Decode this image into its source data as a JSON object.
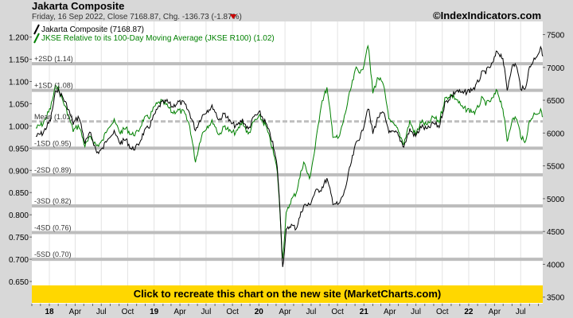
{
  "header": {
    "title": "Jakarta Composite",
    "subtitle_prefix": "Friday, 16 Sep 2022, Close 7168.87, Chg. -136.73 (-1.87%)",
    "change_arrow": "down-triangle-icon",
    "watermark": "©IndexIndicators.com"
  },
  "banner": {
    "label": "Click to recreate this chart on the new site (MarketCharts.com)"
  },
  "colors": {
    "price": "#000000",
    "ratio": "#008000",
    "banner": "#ffd700",
    "band_line": "#bdbdbd",
    "mean_line": "#bfbfbf",
    "arrow": "#cc0000"
  },
  "chart_data": {
    "type": "line",
    "legend": [
      "Jakarta Composite (7168.87)",
      "JKSE Relative to its 100-Day Moving Average (JKSE R100) (1.02)"
    ],
    "legend_placement": "top-left",
    "x_tick_labels": [
      "18",
      "Apr",
      "Jul",
      "Oct",
      "19",
      "Apr",
      "Jul",
      "Oct",
      "20",
      "Apr",
      "Jul",
      "Oct",
      "21",
      "Apr",
      "Jul",
      "Oct",
      "22",
      "Apr",
      "Jul"
    ],
    "x_tick_dates": [
      "2018-01",
      "2018-04",
      "2018-07",
      "2018-10",
      "2019-01",
      "2019-04",
      "2019-07",
      "2019-10",
      "2020-01",
      "2020-04",
      "2020-07",
      "2020-10",
      "2021-01",
      "2021-04",
      "2021-07",
      "2021-10",
      "2022-01",
      "2022-04",
      "2022-07"
    ],
    "x_range": [
      "2017-11",
      "2022-09-16"
    ],
    "left_axis": {
      "ticks": [
        "1.200",
        "1.150",
        "1.100",
        "1.050",
        "1.000",
        "0.950",
        "0.900",
        "0.850",
        "0.800",
        "0.750",
        "0.700",
        "0.650"
      ],
      "range": [
        0.6,
        1.235
      ]
    },
    "right_axis": {
      "ticks": [
        "7500",
        "7000",
        "6500",
        "6000",
        "5500",
        "5000",
        "4500",
        "4000",
        "3500"
      ],
      "range": [
        3400,
        7700
      ]
    },
    "sd_bands": [
      {
        "label": "+2SD (1.14)",
        "value": 1.14
      },
      {
        "label": "+1SD (1.08)",
        "value": 1.08
      },
      {
        "label": "Mean (1.01)",
        "value": 1.01
      },
      {
        "label": "-1SD (0.95)",
        "value": 0.95
      },
      {
        "label": "-2SD (0.89)",
        "value": 0.89
      },
      {
        "label": "-3SD (0.82)",
        "value": 0.82
      },
      {
        "label": "-4SD (0.76)",
        "value": 0.76
      },
      {
        "label": "-5SD (0.70)",
        "value": 0.7
      }
    ],
    "series": [
      {
        "name": "Jakarta Composite (7168.87)",
        "axis": "right",
        "points": [
          [
            "2017-11-15",
            5950
          ],
          [
            "2017-12-10",
            6000
          ],
          [
            "2018-01-05",
            6200
          ],
          [
            "2018-01-25",
            6680
          ],
          [
            "2018-02-15",
            6560
          ],
          [
            "2018-03-05",
            6400
          ],
          [
            "2018-03-25",
            6150
          ],
          [
            "2018-04-15",
            6250
          ],
          [
            "2018-05-05",
            5850
          ],
          [
            "2018-05-25",
            6000
          ],
          [
            "2018-06-15",
            5700
          ],
          [
            "2018-07-05",
            5750
          ],
          [
            "2018-07-25",
            5950
          ],
          [
            "2018-08-15",
            6000
          ],
          [
            "2018-09-05",
            5850
          ],
          [
            "2018-09-25",
            5900
          ],
          [
            "2018-10-15",
            5750
          ],
          [
            "2018-11-05",
            5800
          ],
          [
            "2018-11-25",
            6000
          ],
          [
            "2018-12-15",
            6100
          ],
          [
            "2019-01-05",
            6300
          ],
          [
            "2019-01-25",
            6450
          ],
          [
            "2019-02-15",
            6480
          ],
          [
            "2019-03-05",
            6400
          ],
          [
            "2019-03-25",
            6470
          ],
          [
            "2019-04-15",
            6450
          ],
          [
            "2019-05-05",
            6300
          ],
          [
            "2019-05-25",
            6050
          ],
          [
            "2019-06-15",
            6250
          ],
          [
            "2019-07-05",
            6350
          ],
          [
            "2019-07-25",
            6400
          ],
          [
            "2019-08-15",
            6200
          ],
          [
            "2019-09-05",
            6300
          ],
          [
            "2019-09-25",
            6150
          ],
          [
            "2019-10-15",
            6100
          ],
          [
            "2019-11-05",
            6200
          ],
          [
            "2019-11-25",
            6050
          ],
          [
            "2019-12-15",
            6250
          ],
          [
            "2020-01-05",
            6300
          ],
          [
            "2020-01-25",
            6150
          ],
          [
            "2020-02-15",
            5900
          ],
          [
            "2020-03-05",
            5500
          ],
          [
            "2020-03-15",
            4800
          ],
          [
            "2020-03-24",
            3950
          ],
          [
            "2020-04-05",
            4500
          ],
          [
            "2020-04-20",
            4600
          ],
          [
            "2020-05-10",
            4550
          ],
          [
            "2020-06-05",
            4900
          ],
          [
            "2020-06-25",
            4900
          ],
          [
            "2020-07-15",
            5100
          ],
          [
            "2020-08-05",
            5150
          ],
          [
            "2020-08-25",
            5300
          ],
          [
            "2020-09-15",
            4950
          ],
          [
            "2020-10-05",
            4900
          ],
          [
            "2020-10-25",
            5100
          ],
          [
            "2020-11-15",
            5500
          ],
          [
            "2020-12-05",
            5850
          ],
          [
            "2020-12-25",
            6000
          ],
          [
            "2021-01-15",
            6400
          ],
          [
            "2021-02-01",
            6000
          ],
          [
            "2021-02-20",
            6250
          ],
          [
            "2021-03-10",
            6300
          ],
          [
            "2021-04-01",
            6000
          ],
          [
            "2021-04-25",
            6000
          ],
          [
            "2021-05-20",
            5800
          ],
          [
            "2021-06-10",
            6050
          ],
          [
            "2021-06-30",
            5950
          ],
          [
            "2021-07-20",
            6100
          ],
          [
            "2021-08-10",
            6050
          ],
          [
            "2021-08-30",
            6150
          ],
          [
            "2021-09-20",
            6100
          ],
          [
            "2021-10-10",
            6450
          ],
          [
            "2021-10-30",
            6550
          ],
          [
            "2021-11-20",
            6650
          ],
          [
            "2021-12-10",
            6600
          ],
          [
            "2022-01-05",
            6650
          ],
          [
            "2022-01-25",
            6700
          ],
          [
            "2022-02-15",
            6900
          ],
          [
            "2022-03-05",
            6950
          ],
          [
            "2022-03-25",
            7050
          ],
          [
            "2022-04-10",
            7250
          ],
          [
            "2022-04-30",
            7150
          ],
          [
            "2022-05-15",
            6650
          ],
          [
            "2022-05-30",
            7000
          ],
          [
            "2022-06-15",
            7050
          ],
          [
            "2022-07-01",
            6700
          ],
          [
            "2022-07-15",
            6650
          ],
          [
            "2022-08-01",
            7000
          ],
          [
            "2022-08-20",
            7150
          ],
          [
            "2022-09-05",
            7250
          ],
          [
            "2022-09-12",
            7300
          ],
          [
            "2022-09-16",
            7169
          ]
        ]
      },
      {
        "name": "JKSE Relative to its 100-Day Moving Average (JKSE R100) (1.02)",
        "axis": "left",
        "points": [
          [
            "2017-11-15",
            0.995
          ],
          [
            "2017-12-10",
            1.005
          ],
          [
            "2018-01-05",
            1.04
          ],
          [
            "2018-01-25",
            1.095
          ],
          [
            "2018-02-15",
            1.06
          ],
          [
            "2018-03-05",
            1.03
          ],
          [
            "2018-03-25",
            0.99
          ],
          [
            "2018-04-15",
            1.0
          ],
          [
            "2018-05-05",
            0.955
          ],
          [
            "2018-05-25",
            0.975
          ],
          [
            "2018-06-15",
            0.955
          ],
          [
            "2018-07-05",
            0.965
          ],
          [
            "2018-07-25",
            1.0
          ],
          [
            "2018-08-15",
            1.01
          ],
          [
            "2018-09-05",
            0.985
          ],
          [
            "2018-09-25",
            0.995
          ],
          [
            "2018-10-15",
            0.98
          ],
          [
            "2018-11-05",
            0.985
          ],
          [
            "2018-11-25",
            1.015
          ],
          [
            "2018-12-15",
            1.02
          ],
          [
            "2019-01-05",
            1.045
          ],
          [
            "2019-01-25",
            1.055
          ],
          [
            "2019-02-15",
            1.045
          ],
          [
            "2019-03-05",
            1.03
          ],
          [
            "2019-03-25",
            1.035
          ],
          [
            "2019-04-15",
            1.03
          ],
          [
            "2019-05-05",
            1.0
          ],
          [
            "2019-05-25",
            0.92
          ],
          [
            "2019-06-15",
            0.98
          ],
          [
            "2019-07-05",
            1.0
          ],
          [
            "2019-07-25",
            1.01
          ],
          [
            "2019-08-15",
            0.98
          ],
          [
            "2019-09-05",
            1.0
          ],
          [
            "2019-09-25",
            0.985
          ],
          [
            "2019-10-15",
            0.985
          ],
          [
            "2019-11-05",
            1.01
          ],
          [
            "2019-11-25",
            0.98
          ],
          [
            "2019-12-15",
            1.01
          ],
          [
            "2020-01-05",
            1.02
          ],
          [
            "2020-01-25",
            1.0
          ],
          [
            "2020-02-15",
            0.955
          ],
          [
            "2020-03-05",
            0.9
          ],
          [
            "2020-03-15",
            0.8
          ],
          [
            "2020-03-24",
            0.7
          ],
          [
            "2020-04-05",
            0.8
          ],
          [
            "2020-04-20",
            0.83
          ],
          [
            "2020-05-10",
            0.85
          ],
          [
            "2020-06-05",
            0.92
          ],
          [
            "2020-06-25",
            0.88
          ],
          [
            "2020-07-15",
            0.95
          ],
          [
            "2020-08-05",
            1.05
          ],
          [
            "2020-08-25",
            1.085
          ],
          [
            "2020-09-15",
            0.98
          ],
          [
            "2020-10-05",
            0.97
          ],
          [
            "2020-10-25",
            1.02
          ],
          [
            "2020-11-15",
            1.08
          ],
          [
            "2020-12-05",
            1.13
          ],
          [
            "2020-12-25",
            1.12
          ],
          [
            "2021-01-15",
            1.185
          ],
          [
            "2021-02-01",
            1.075
          ],
          [
            "2021-02-20",
            1.11
          ],
          [
            "2021-03-10",
            1.09
          ],
          [
            "2021-04-01",
            1.01
          ],
          [
            "2021-04-25",
            0.995
          ],
          [
            "2021-05-20",
            0.96
          ],
          [
            "2021-06-10",
            1.01
          ],
          [
            "2021-06-30",
            0.98
          ],
          [
            "2021-07-20",
            1.01
          ],
          [
            "2021-08-10",
            1.0
          ],
          [
            "2021-08-30",
            1.02
          ],
          [
            "2021-09-20",
            1.01
          ],
          [
            "2021-10-10",
            1.06
          ],
          [
            "2021-10-30",
            1.07
          ],
          [
            "2021-11-20",
            1.06
          ],
          [
            "2021-12-10",
            1.04
          ],
          [
            "2022-01-05",
            1.035
          ],
          [
            "2022-01-25",
            1.03
          ],
          [
            "2022-02-15",
            1.06
          ],
          [
            "2022-03-05",
            1.05
          ],
          [
            "2022-03-25",
            1.06
          ],
          [
            "2022-04-10",
            1.08
          ],
          [
            "2022-04-30",
            1.04
          ],
          [
            "2022-05-15",
            0.965
          ],
          [
            "2022-05-30",
            1.01
          ],
          [
            "2022-06-15",
            1.02
          ],
          [
            "2022-07-01",
            0.98
          ],
          [
            "2022-07-15",
            0.96
          ],
          [
            "2022-08-01",
            1.01
          ],
          [
            "2022-08-20",
            1.03
          ],
          [
            "2022-09-05",
            1.03
          ],
          [
            "2022-09-12",
            1.035
          ],
          [
            "2022-09-16",
            1.02
          ]
        ]
      }
    ]
  }
}
